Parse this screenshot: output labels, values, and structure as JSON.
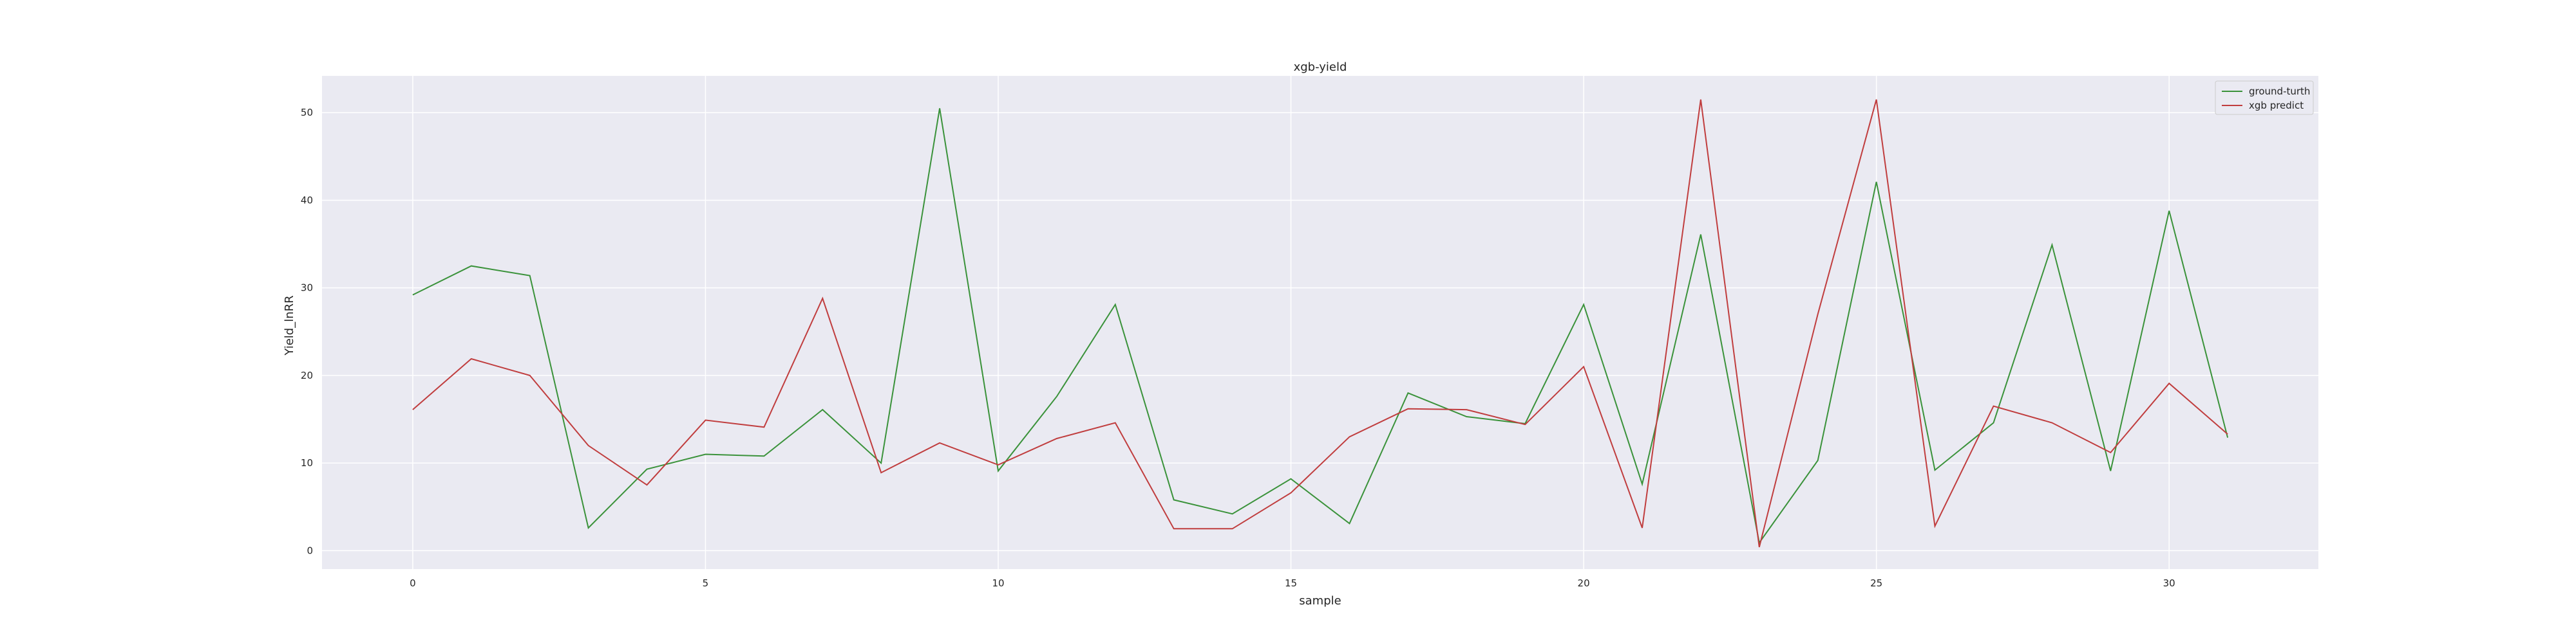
{
  "chart_data": {
    "type": "line",
    "title": "xgb-yield",
    "xlabel": "sample",
    "ylabel": "Yield_lnRR",
    "x": [
      0,
      1,
      2,
      3,
      4,
      5,
      6,
      7,
      8,
      9,
      10,
      11,
      12,
      13,
      14,
      15,
      16,
      17,
      18,
      19,
      20,
      21,
      22,
      23,
      24,
      25,
      26,
      27,
      28,
      29,
      30,
      31
    ],
    "xlim": [
      -1.55,
      32.55
    ],
    "ylim": [
      -2.1,
      54.2
    ],
    "xticks": [
      0,
      5,
      10,
      15,
      20,
      25,
      30
    ],
    "yticks": [
      0,
      10,
      20,
      30,
      40,
      50
    ],
    "grid": true,
    "legend_position": "top-right",
    "series": [
      {
        "name": "ground-turth",
        "color": "#3a923a",
        "values": [
          29.2,
          32.5,
          31.4,
          2.6,
          9.3,
          11.0,
          10.8,
          16.1,
          10.0,
          50.5,
          9.1,
          17.6,
          28.1,
          5.8,
          4.2,
          8.2,
          3.1,
          18.0,
          15.3,
          14.5,
          28.1,
          7.6,
          36.1,
          0.9,
          10.3,
          42.1,
          9.2,
          14.6,
          34.9,
          9.1,
          38.8,
          12.9
        ]
      },
      {
        "name": "xgb predict",
        "color": "#c03d3e",
        "values": [
          16.1,
          21.9,
          20.0,
          12.0,
          7.5,
          14.9,
          14.1,
          28.8,
          8.9,
          12.3,
          9.8,
          12.8,
          14.6,
          2.5,
          2.5,
          6.6,
          13.0,
          16.2,
          16.1,
          14.4,
          21.0,
          2.6,
          51.5,
          0.4,
          27.0,
          51.5,
          2.8,
          16.5,
          14.6,
          11.2,
          19.1,
          13.3
        ]
      }
    ]
  }
}
